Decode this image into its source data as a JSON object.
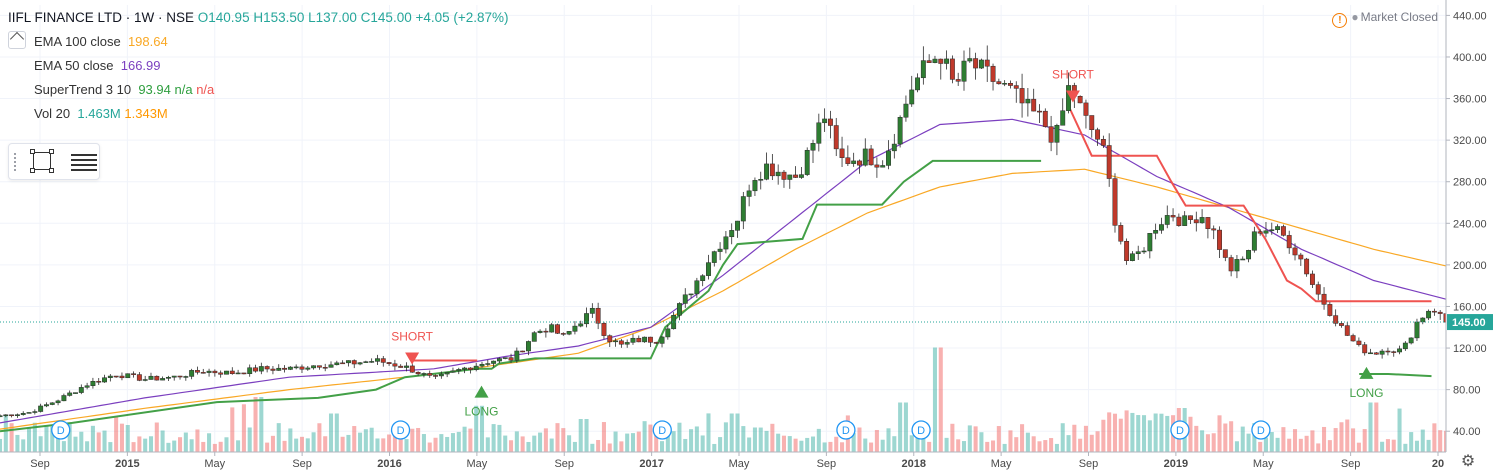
{
  "header": {
    "symbol": "IIFL FINANCE LTD · 1W · NSE",
    "ohlc": "O140.95 H153.50 L137.00 C145.00 +4.05 (+2.87%)",
    "status": "Market Closed"
  },
  "indicators": [
    {
      "label": "EMA 100 close",
      "values": [
        "198.64"
      ],
      "colors": [
        "#f9a825"
      ]
    },
    {
      "label": "EMA 50 close",
      "values": [
        "166.99"
      ],
      "colors": [
        "#7b3fbf"
      ]
    },
    {
      "label": "SuperTrend 3 10",
      "values": [
        "93.94",
        "n/a",
        "n/a"
      ],
      "colors": [
        "#2e9e3e",
        "#2e9e3e",
        "#ef5350"
      ]
    },
    {
      "label": "Vol 20",
      "values": [
        "1.463M",
        "1.343M"
      ],
      "colors": [
        "#26a69a",
        "#ff9800"
      ]
    }
  ],
  "colors": {
    "up": "#26a69a",
    "down": "#ef5350",
    "candle_down": "#c0392b",
    "candle_up": "#2e7d32",
    "ema100": "#f9a825",
    "ema50": "#7b3fbf",
    "st_long": "#43a047",
    "st_short": "#ef5350",
    "grid": "#f0f3fa",
    "axis_text": "#4a4a4a"
  },
  "icons": [
    "warning-icon",
    "rectangle-tool-icon",
    "lines-tool-icon",
    "gear-icon",
    "collapse-arrow-icon",
    "dividend-marker-icon"
  ],
  "chart_data": {
    "type": "candlestick",
    "y_axis": {
      "min": 20,
      "max": 450,
      "ticks": [
        40,
        80,
        120,
        160,
        200,
        240,
        280,
        320,
        360,
        400,
        440
      ]
    },
    "x_axis": {
      "labels": [
        "Sep",
        "2015",
        "May",
        "Sep",
        "2016",
        "May",
        "Sep",
        "2017",
        "May",
        "Sep",
        "2018",
        "May",
        "Sep",
        "2019",
        "May",
        "Sep",
        "20"
      ]
    },
    "last_price": {
      "value": 145.0,
      "label": "145.00"
    },
    "price_path": [
      [
        0,
        55
      ],
      [
        0.02,
        58
      ],
      [
        0.04,
        70
      ],
      [
        0.06,
        85
      ],
      [
        0.08,
        95
      ],
      [
        0.1,
        90
      ],
      [
        0.12,
        92
      ],
      [
        0.14,
        98
      ],
      [
        0.16,
        96
      ],
      [
        0.18,
        100
      ],
      [
        0.2,
        100
      ],
      [
        0.22,
        104
      ],
      [
        0.24,
        105
      ],
      [
        0.26,
        108
      ],
      [
        0.28,
        102
      ],
      [
        0.3,
        90
      ],
      [
        0.32,
        100
      ],
      [
        0.34,
        108
      ],
      [
        0.355,
        110
      ],
      [
        0.37,
        135
      ],
      [
        0.38,
        140
      ],
      [
        0.39,
        130
      ],
      [
        0.4,
        145
      ],
      [
        0.41,
        155
      ],
      [
        0.42,
        130
      ],
      [
        0.43,
        122
      ],
      [
        0.44,
        128
      ],
      [
        0.455,
        128
      ],
      [
        0.47,
        160
      ],
      [
        0.48,
        180
      ],
      [
        0.49,
        205
      ],
      [
        0.5,
        225
      ],
      [
        0.51,
        245
      ],
      [
        0.52,
        285
      ],
      [
        0.53,
        295
      ],
      [
        0.54,
        290
      ],
      [
        0.55,
        285
      ],
      [
        0.56,
        310
      ],
      [
        0.57,
        345
      ],
      [
        0.58,
        300
      ],
      [
        0.6,
        305
      ],
      [
        0.61,
        300
      ],
      [
        0.62,
        330
      ],
      [
        0.63,
        370
      ],
      [
        0.64,
        390
      ],
      [
        0.65,
        405
      ],
      [
        0.66,
        370
      ],
      [
        0.67,
        395
      ],
      [
        0.68,
        385
      ],
      [
        0.7,
        365
      ],
      [
        0.71,
        350
      ],
      [
        0.72,
        340
      ],
      [
        0.73,
        320
      ],
      [
        0.74,
        375
      ],
      [
        0.75,
        340
      ],
      [
        0.76,
        320
      ],
      [
        0.765,
        300
      ],
      [
        0.77,
        250
      ],
      [
        0.78,
        200
      ],
      [
        0.79,
        215
      ],
      [
        0.8,
        240
      ],
      [
        0.81,
        250
      ],
      [
        0.82,
        240
      ],
      [
        0.83,
        250
      ],
      [
        0.84,
        230
      ],
      [
        0.85,
        195
      ],
      [
        0.86,
        205
      ],
      [
        0.87,
        235
      ],
      [
        0.88,
        235
      ],
      [
        0.89,
        225
      ],
      [
        0.9,
        205
      ],
      [
        0.91,
        175
      ],
      [
        0.92,
        155
      ],
      [
        0.93,
        135
      ],
      [
        0.94,
        120
      ],
      [
        0.95,
        115
      ],
      [
        0.96,
        120
      ],
      [
        0.97,
        117
      ],
      [
        0.98,
        145
      ],
      [
        0.99,
        160
      ],
      [
        1,
        145
      ]
    ],
    "ema100_path": [
      [
        0,
        42
      ],
      [
        0.1,
        62
      ],
      [
        0.2,
        80
      ],
      [
        0.3,
        95
      ],
      [
        0.35,
        105
      ],
      [
        0.4,
        115
      ],
      [
        0.45,
        140
      ],
      [
        0.5,
        175
      ],
      [
        0.55,
        215
      ],
      [
        0.6,
        250
      ],
      [
        0.65,
        275
      ],
      [
        0.7,
        288
      ],
      [
        0.75,
        292
      ],
      [
        0.8,
        275
      ],
      [
        0.85,
        255
      ],
      [
        0.9,
        235
      ],
      [
        0.95,
        215
      ],
      [
        1,
        199
      ]
    ],
    "ema50_path": [
      [
        0,
        48
      ],
      [
        0.1,
        72
      ],
      [
        0.2,
        92
      ],
      [
        0.3,
        100
      ],
      [
        0.35,
        112
      ],
      [
        0.4,
        122
      ],
      [
        0.45,
        140
      ],
      [
        0.5,
        190
      ],
      [
        0.55,
        245
      ],
      [
        0.6,
        300
      ],
      [
        0.65,
        335
      ],
      [
        0.7,
        340
      ],
      [
        0.75,
        325
      ],
      [
        0.8,
        285
      ],
      [
        0.85,
        255
      ],
      [
        0.9,
        215
      ],
      [
        0.95,
        185
      ],
      [
        1,
        167
      ]
    ],
    "supertrend_long_segments": [
      [
        [
          0,
          40
        ],
        [
          0.05,
          48
        ],
        [
          0.15,
          68
        ],
        [
          0.22,
          72
        ],
        [
          0.26,
          80
        ],
        [
          0.28,
          92
        ],
        [
          0.33,
          100
        ],
        [
          0.34,
          100
        ],
        [
          0.345,
          105
        ],
        [
          0.37,
          110
        ],
        [
          0.45,
          110
        ],
        [
          0.46,
          140
        ],
        [
          0.49,
          175
        ],
        [
          0.5,
          200
        ],
        [
          0.51,
          220
        ],
        [
          0.555,
          225
        ],
        [
          0.565,
          258
        ],
        [
          0.61,
          258
        ],
        [
          0.625,
          280
        ],
        [
          0.645,
          300
        ],
        [
          0.72,
          300
        ]
      ],
      [
        [
          0.94,
          95
        ],
        [
          0.96,
          95
        ],
        [
          0.99,
          93
        ]
      ]
    ],
    "supertrend_short_segments": [
      [
        [
          0.285,
          108
        ],
        [
          0.33,
          108
        ]
      ],
      [
        [
          0.74,
          350
        ],
        [
          0.755,
          305
        ],
        [
          0.8,
          305
        ],
        [
          0.81,
          280
        ],
        [
          0.82,
          257
        ],
        [
          0.86,
          257
        ],
        [
          0.875,
          225
        ],
        [
          0.89,
          185
        ],
        [
          0.9,
          177
        ],
        [
          0.91,
          165
        ],
        [
          0.93,
          165
        ],
        [
          0.99,
          165
        ]
      ]
    ],
    "signals": [
      {
        "label": "SHORT",
        "x": 0.285,
        "price": 108,
        "type": "short"
      },
      {
        "label": "LONG",
        "x": 0.333,
        "price": 80,
        "type": "long"
      },
      {
        "label": "SHORT",
        "x": 0.742,
        "price": 360,
        "type": "short"
      },
      {
        "label": "LONG",
        "x": 0.945,
        "price": 98,
        "type": "long"
      }
    ],
    "dividends": [
      {
        "label": "D",
        "x": 0.042
      },
      {
        "label": "D",
        "x": 0.277
      },
      {
        "label": "D",
        "x": 0.458
      },
      {
        "label": "D",
        "x": 0.585
      },
      {
        "label": "D",
        "x": 0.637
      },
      {
        "label": "D",
        "x": 0.816
      },
      {
        "label": "D",
        "x": 0.872
      }
    ],
    "volume_spikes": [
      {
        "x": 0.178,
        "level": 0.5
      },
      {
        "x": 0.229,
        "level": 0.35
      },
      {
        "x": 0.333,
        "level": 0.42
      },
      {
        "x": 0.402,
        "level": 0.3
      },
      {
        "x": 0.508,
        "level": 0.35
      },
      {
        "x": 0.624,
        "level": 0.45
      },
      {
        "x": 0.65,
        "level": 0.95
      },
      {
        "x": 0.818,
        "level": 0.4
      },
      {
        "x": 0.951,
        "level": 0.45
      }
    ]
  }
}
